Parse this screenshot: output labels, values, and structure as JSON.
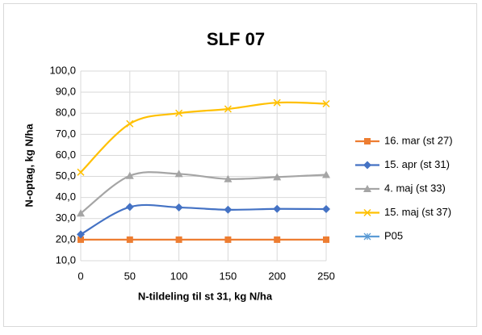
{
  "chart_data": {
    "type": "line",
    "title": "SLF 07",
    "xlabel": "N-tildeling til st 31, kg N/ha",
    "ylabel": "N-optag, kg N/ha",
    "x": [
      0,
      50,
      100,
      150,
      200,
      250
    ],
    "series": [
      {
        "name": "16. mar (st 27)",
        "color": "#ED7D31",
        "marker": "square",
        "values": [
          20,
          20,
          20,
          20,
          20,
          20
        ]
      },
      {
        "name": "15. apr (st 31)",
        "color": "#4472C4",
        "marker": "diamond",
        "values": [
          22.5,
          35.5,
          35.3,
          34.2,
          34.6,
          34.5
        ]
      },
      {
        "name": "4. maj (st 33)",
        "color": "#A5A5A5",
        "marker": "triangle",
        "values": [
          32.5,
          50.3,
          51.2,
          48.8,
          49.7,
          50.8
        ]
      },
      {
        "name": "15. maj (st 37)",
        "color": "#FFC000",
        "marker": "x",
        "values": [
          52,
          75,
          80,
          82,
          85,
          84.5
        ]
      },
      {
        "name": "P05",
        "color": "#5B9BD5",
        "marker": "asterisk",
        "values": [
          null,
          null,
          null,
          null,
          null,
          null
        ]
      }
    ],
    "xlim": [
      0,
      250
    ],
    "xticks": [
      0,
      50,
      100,
      150,
      200,
      250
    ],
    "ylim": [
      10,
      100
    ],
    "yticks": [
      {
        "value": 10,
        "label": "10,0"
      },
      {
        "value": 20,
        "label": "20,0"
      },
      {
        "value": 30,
        "label": "30,0"
      },
      {
        "value": 40,
        "label": "40,0"
      },
      {
        "value": 50,
        "label": "50,0"
      },
      {
        "value": 60,
        "label": "60,0"
      },
      {
        "value": 70,
        "label": "70,0"
      },
      {
        "value": 80,
        "label": "80,0"
      },
      {
        "value": 90,
        "label": "90,0"
      },
      {
        "value": 100,
        "label": "100,0"
      }
    ],
    "grid": true,
    "smooth": true,
    "legend": "right"
  }
}
